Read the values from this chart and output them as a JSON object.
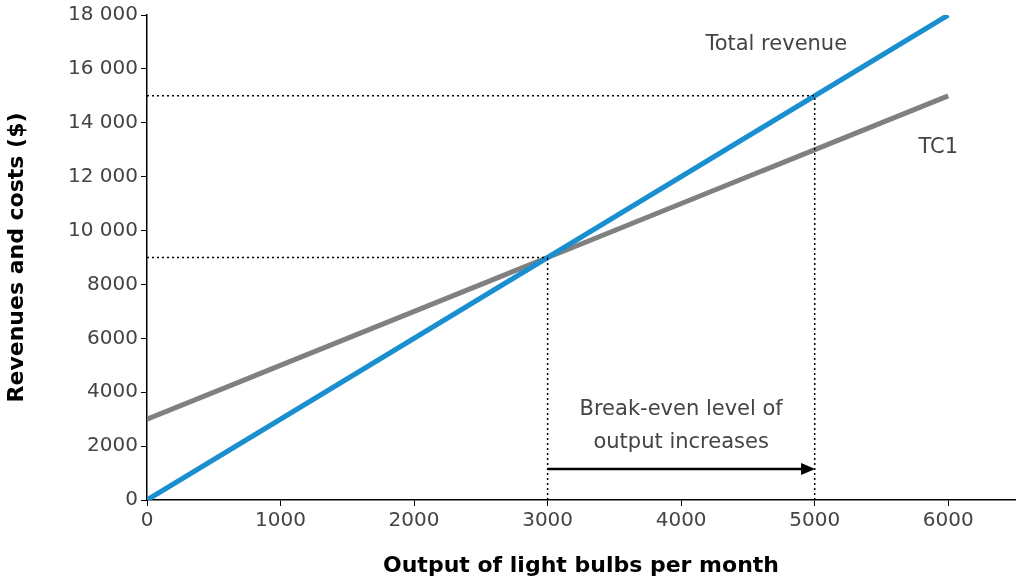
{
  "chart_data": {
    "type": "line",
    "xlabel": "Output of light bulbs per month",
    "ylabel": "Revenues and costs ($)",
    "x": [
      0,
      3000,
      6000
    ],
    "series": [
      {
        "name": "Total revenue",
        "color": "#1a8fd0",
        "values": [
          0,
          9000,
          18000
        ]
      },
      {
        "name": "TC1",
        "color": "#808080",
        "values": [
          3000,
          9000,
          15000
        ]
      }
    ],
    "xlim": [
      0,
      6500
    ],
    "xticks": [
      0,
      1000,
      2000,
      3000,
      4000,
      5000,
      6000
    ],
    "ylim": [
      0,
      18000
    ],
    "yticks": [
      0,
      2000,
      4000,
      6000,
      8000,
      {
        "value": 10000,
        "label": "10 000"
      },
      {
        "value": 12000,
        "label": "12 000"
      },
      {
        "value": 14000,
        "label": "14 000"
      },
      {
        "value": 16000,
        "label": "16 000"
      },
      {
        "value": 18000,
        "label": "18 000"
      }
    ],
    "ref_lines": [
      {
        "axis": "y",
        "value": 15000,
        "color": "#000000",
        "line_style": "dotted"
      },
      {
        "axis": "y",
        "value": 9000,
        "color": "#000000",
        "line_style": "dotted"
      },
      {
        "axis": "x",
        "value": 3000,
        "color": "#000000",
        "line_style": "dotted"
      },
      {
        "axis": "x",
        "value": 5000,
        "color": "#000000",
        "line_style": "dotted"
      }
    ],
    "annotations": [
      "Break-even level of output increases"
    ],
    "grid": false,
    "legend": false,
    "marker": "none",
    "line_style": "solid"
  }
}
